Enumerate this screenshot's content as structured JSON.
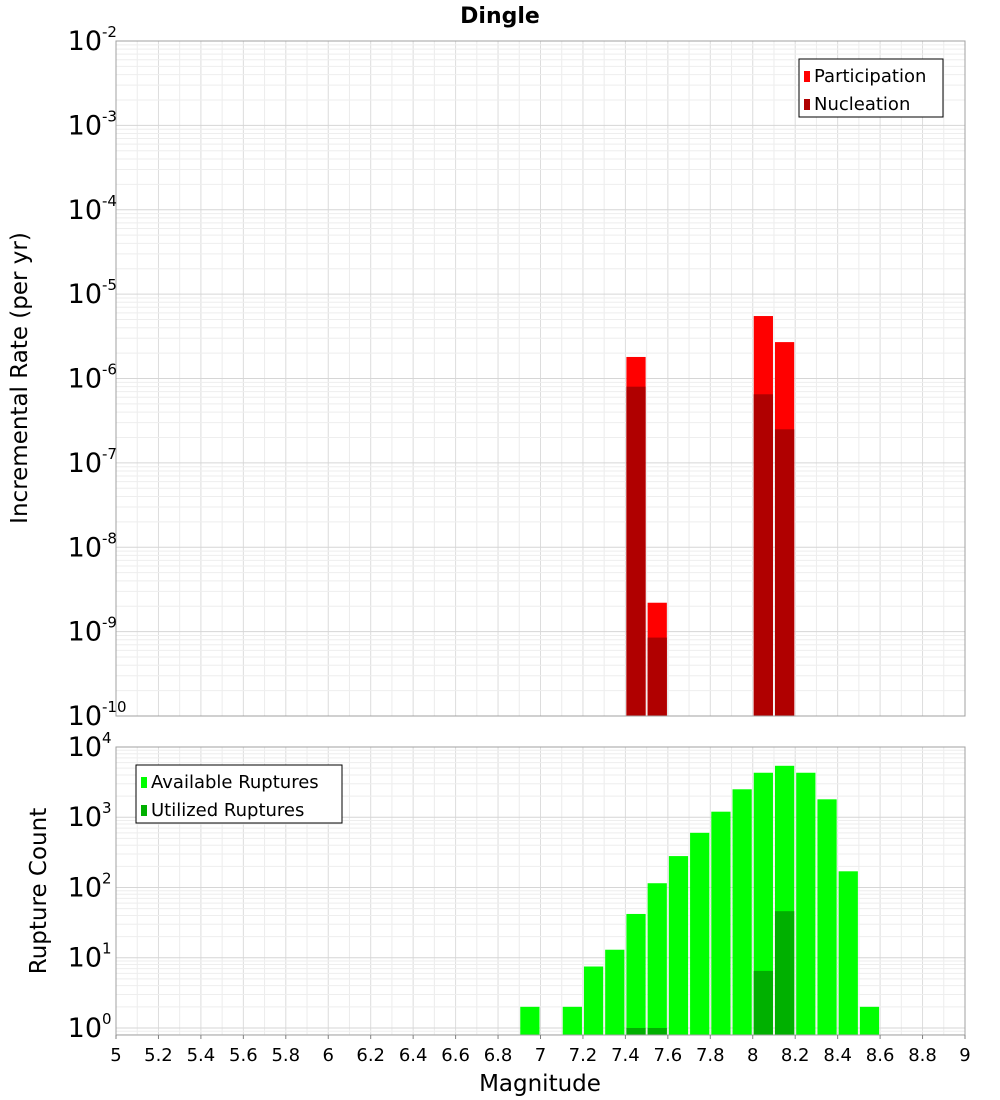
{
  "chart_data": [
    {
      "type": "bar",
      "title": "Dingle",
      "ylabel": "Incremental Rate (per yr)",
      "xlabel": "",
      "yscale": "log",
      "ylim_exp": [
        -10,
        -2
      ],
      "xlim": [
        5,
        9
      ],
      "bin_width": 0.1,
      "grid": true,
      "legend_position": "top-right",
      "series": [
        {
          "name": "Participation",
          "color": "#ff0000",
          "points": [
            {
              "x": 7.45,
              "y": 1.8e-06
            },
            {
              "x": 7.55,
              "y": 2.2e-09
            },
            {
              "x": 8.05,
              "y": 5.5e-06
            },
            {
              "x": 8.15,
              "y": 2.7e-06
            }
          ]
        },
        {
          "name": "Nucleation",
          "color": "#b00000",
          "points": [
            {
              "x": 7.45,
              "y": 8e-07
            },
            {
              "x": 7.55,
              "y": 8.5e-10
            },
            {
              "x": 8.05,
              "y": 6.5e-07
            },
            {
              "x": 8.15,
              "y": 2.5e-07
            }
          ]
        }
      ]
    },
    {
      "type": "bar",
      "title": "",
      "ylabel": "Rupture Count",
      "xlabel": "Magnitude",
      "yscale": "log",
      "ylim_exp": [
        -0.1,
        4
      ],
      "xlim": [
        5,
        9
      ],
      "bin_width": 0.1,
      "grid": true,
      "legend_position": "top-left",
      "x_ticks": [
        "5",
        "5.2",
        "5.4",
        "5.6",
        "5.8",
        "6",
        "6.2",
        "6.4",
        "6.6",
        "6.8",
        "7",
        "7.2",
        "7.4",
        "7.6",
        "7.8",
        "8",
        "8.2",
        "8.4",
        "8.6",
        "8.8",
        "9"
      ],
      "series": [
        {
          "name": "Available Ruptures",
          "color": "#00ff00",
          "points": [
            {
              "x": 6.95,
              "y": 2
            },
            {
              "x": 7.15,
              "y": 2
            },
            {
              "x": 7.25,
              "y": 7.5
            },
            {
              "x": 7.35,
              "y": 13
            },
            {
              "x": 7.45,
              "y": 42
            },
            {
              "x": 7.55,
              "y": 115
            },
            {
              "x": 7.65,
              "y": 280
            },
            {
              "x": 7.75,
              "y": 600
            },
            {
              "x": 7.85,
              "y": 1200
            },
            {
              "x": 7.95,
              "y": 2500
            },
            {
              "x": 8.05,
              "y": 4300
            },
            {
              "x": 8.15,
              "y": 5400
            },
            {
              "x": 8.25,
              "y": 4300
            },
            {
              "x": 8.35,
              "y": 1800
            },
            {
              "x": 8.45,
              "y": 170
            },
            {
              "x": 8.55,
              "y": 2
            }
          ]
        },
        {
          "name": "Utilized Ruptures",
          "color": "#00b000",
          "points": [
            {
              "x": 7.45,
              "y": 1
            },
            {
              "x": 7.55,
              "y": 1
            },
            {
              "x": 8.05,
              "y": 6.5
            },
            {
              "x": 8.15,
              "y": 46
            }
          ]
        }
      ]
    }
  ]
}
